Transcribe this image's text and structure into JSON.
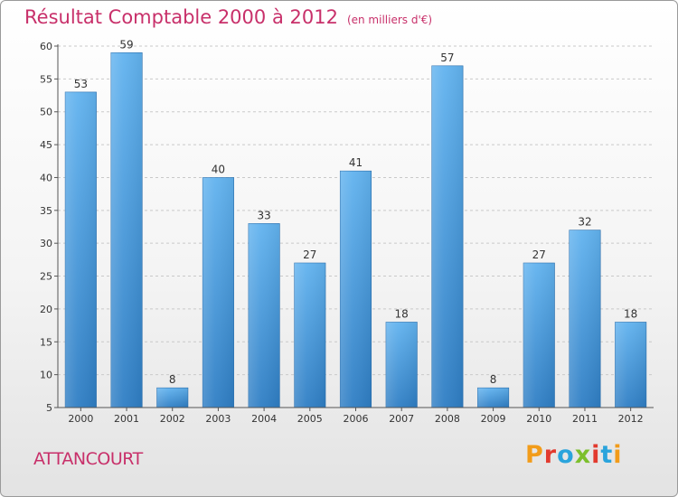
{
  "header": {
    "title": "Résultat Comptable 2000 à 2012",
    "unit": "(en milliers d'€)"
  },
  "footer": {
    "commune": "ATTANCOURT",
    "logo": "Proxiti",
    "logo_colors": [
      "#f29c1a",
      "#e23a2e",
      "#2aa4dc",
      "#7cbf2c",
      "#e23a2e",
      "#2aa4dc",
      "#f29c1a"
    ]
  },
  "chart_data": {
    "type": "bar",
    "categories": [
      "2000",
      "2001",
      "2002",
      "2003",
      "2004",
      "2005",
      "2006",
      "2007",
      "2008",
      "2009",
      "2010",
      "2011",
      "2012"
    ],
    "values": [
      53,
      59,
      8,
      40,
      33,
      27,
      41,
      18,
      57,
      8,
      27,
      32,
      18
    ],
    "data_labels": [
      "53",
      "59",
      "8",
      "40",
      "33",
      "27",
      "41",
      "18",
      "57",
      "8",
      "27",
      "32",
      "18"
    ],
    "title": "Résultat Comptable 2000 à 2012",
    "xlabel": "",
    "ylabel": "",
    "ylim": [
      5,
      60
    ],
    "yticks": [
      5,
      10,
      15,
      20,
      25,
      30,
      35,
      40,
      45,
      50,
      55,
      60
    ],
    "ytick_labels": [
      "5",
      "10",
      "15",
      "20",
      "25",
      "30",
      "35",
      "40",
      "45",
      "50",
      "55",
      "60"
    ],
    "grid": "horizontal dashed",
    "bar_color": "#3d8fd6"
  }
}
